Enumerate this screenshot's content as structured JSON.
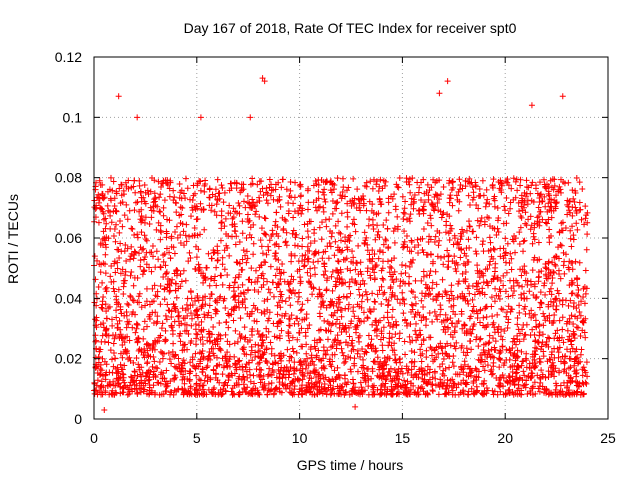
{
  "chart_data": {
    "type": "scatter",
    "title": "Day 167 of 2018, Rate Of TEC Index for receiver spt0",
    "xlabel": "GPS time / hours",
    "ylabel": "ROTI / TECUs",
    "xlim": [
      0,
      25
    ],
    "ylim": [
      0,
      0.12
    ],
    "x_ticks": [
      0,
      5,
      10,
      15,
      20,
      25
    ],
    "x_tick_labels": [
      "0",
      "5",
      "10",
      "15",
      "20",
      "25"
    ],
    "y_ticks": [
      0,
      0.02,
      0.04,
      0.06,
      0.08,
      0.1,
      0.12
    ],
    "y_tick_labels": [
      "0",
      "0.02",
      "0.04",
      "0.06",
      "0.08",
      "0.1",
      "0.12"
    ],
    "grid": true,
    "marker": "+",
    "series": [
      {
        "name": "ROTI",
        "color": "#ff0000",
        "x_range_hours": [
          0,
          24
        ],
        "typical_range": [
          0.008,
          0.08
        ],
        "notable_points": [
          {
            "x": 1.2,
            "y": 0.107
          },
          {
            "x": 2.1,
            "y": 0.1
          },
          {
            "x": 5.2,
            "y": 0.1
          },
          {
            "x": 7.6,
            "y": 0.1
          },
          {
            "x": 8.2,
            "y": 0.113
          },
          {
            "x": 8.3,
            "y": 0.112
          },
          {
            "x": 16.8,
            "y": 0.108
          },
          {
            "x": 17.2,
            "y": 0.112
          },
          {
            "x": 21.3,
            "y": 0.104
          },
          {
            "x": 22.8,
            "y": 0.107
          },
          {
            "x": 0.5,
            "y": 0.003
          },
          {
            "x": 12.7,
            "y": 0.004
          }
        ]
      }
    ]
  }
}
